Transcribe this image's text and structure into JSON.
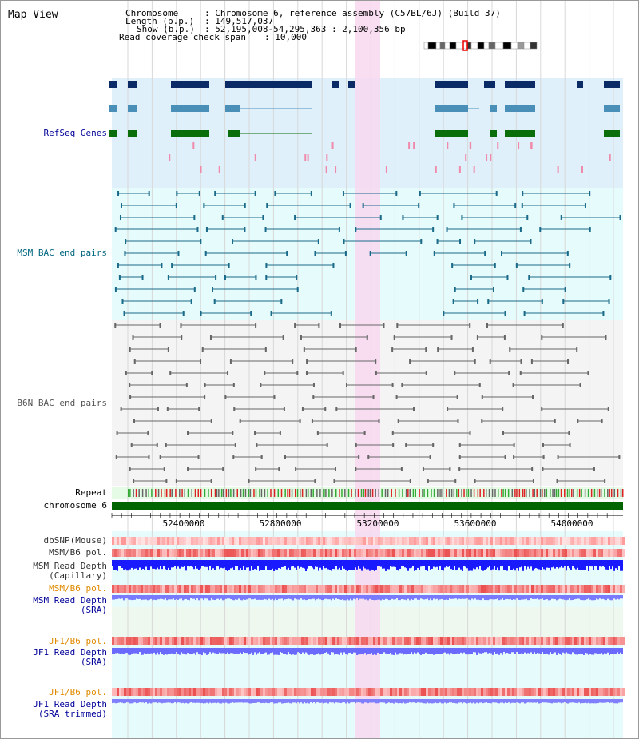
{
  "title": "Map View",
  "info": {
    "chromosome_key": "Chromosome",
    "chromosome_val": ": Chromosome 6, reference assembly (C57BL/6J) (Build 37)",
    "length_key": "Length (b.p.)",
    "length_val": ": 149,517,037",
    "show_key": "Show (b.p.)",
    "show_val": ": 52,195,008-54,295,363 : 2,100,356 bp",
    "span_key": "Read coverage check span",
    "span_val": ": 10,000"
  },
  "tracks": {
    "refseq": "RefSeq Genes",
    "msm_bac": "MSM BAC end pairs",
    "b6n_bac": "B6N BAC end pairs",
    "repeat": "Repeat",
    "chromosome": "chromosome 6",
    "dbsnp": "dbSNP(Mouse)",
    "msm_b6_pol": "MSM/B6 pol.",
    "msm_depth_cap_1": "MSM Read Depth",
    "msm_depth_cap_2": "(Capillary)",
    "msm_b6_pol2": "MSM/B6 pol.",
    "msm_depth_sra_1": "MSM Read Depth",
    "msm_depth_sra_2": "(SRA)",
    "jf1_b6_pol": "JF1/B6 pol.",
    "jf1_depth_sra_1": "JF1 Read Depth",
    "jf1_depth_sra_2": "(SRA)",
    "jf1_b6_pol2": "JF1/B6 pol.",
    "jf1_depth_trim_1": "JF1 Read Depth",
    "jf1_depth_trim_2": "(SRA trimmed)"
  },
  "ticks": [
    "52400000",
    "52800000",
    "53200000",
    "53600000",
    "54000000"
  ],
  "colors": {
    "refseq_label": "#000099",
    "msm_label": "#006680",
    "b6n_label": "#555555",
    "pol_label": "#e08a00",
    "depth_label": "#000099",
    "refseq_bg": "#dff0fa",
    "msm_bg": "#e6fbfb",
    "b6n_bg": "#f4f4f4",
    "highlight": "#f8d8f0",
    "chromosome_bar": "#006400"
  }
}
